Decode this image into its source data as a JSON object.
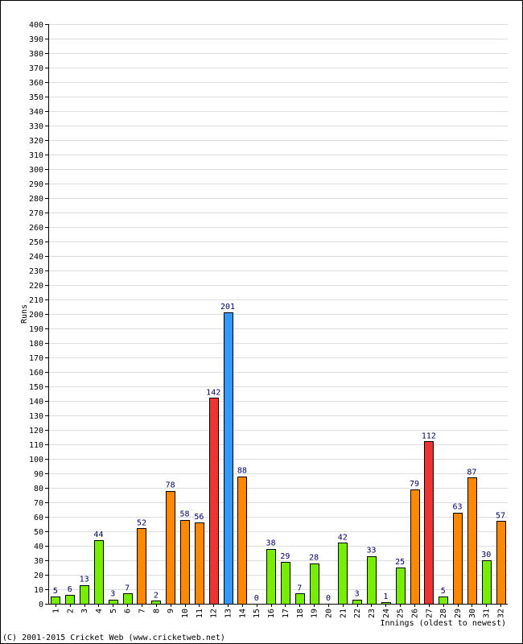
{
  "chart_data": {
    "type": "bar",
    "title": "",
    "xlabel": "Innings (oldest to newest)",
    "ylabel": "Runs",
    "ylim": [
      0,
      400
    ],
    "ytick_step": 10,
    "grid": true,
    "categories": [
      "1",
      "2",
      "3",
      "4",
      "5",
      "6",
      "7",
      "8",
      "9",
      "10",
      "11",
      "12",
      "13",
      "14",
      "15",
      "16",
      "17",
      "18",
      "19",
      "20",
      "21",
      "22",
      "23",
      "24",
      "25",
      "26",
      "27",
      "28",
      "29",
      "30",
      "31",
      "32"
    ],
    "values": [
      5,
      6,
      13,
      44,
      3,
      7,
      52,
      2,
      78,
      58,
      56,
      142,
      201,
      88,
      0,
      38,
      29,
      7,
      28,
      0,
      42,
      3,
      33,
      1,
      25,
      79,
      112,
      5,
      63,
      87,
      30,
      57
    ],
    "value_labels": [
      "5",
      "6",
      "13",
      "44",
      "3",
      "7",
      "52",
      "2",
      "78",
      "58",
      "56",
      "142",
      "201",
      "88",
      "0",
      "38",
      "29",
      "7",
      "28",
      "0",
      "42",
      "3",
      "33",
      "1",
      "25",
      "79",
      "112",
      "5",
      "63",
      "87",
      "30",
      "57"
    ],
    "bar_colors": [
      "#77ee00",
      "#77ee00",
      "#77ee00",
      "#77ee00",
      "#77ee00",
      "#77ee00",
      "#ff8800",
      "#77ee00",
      "#ff8800",
      "#ff8800",
      "#ff8800",
      "#ee3333",
      "#3399ff",
      "#ff8800",
      "#77ee00",
      "#77ee00",
      "#77ee00",
      "#77ee00",
      "#77ee00",
      "#77ee00",
      "#77ee00",
      "#77ee00",
      "#77ee00",
      "#77ee00",
      "#77ee00",
      "#ff8800",
      "#ee3333",
      "#77ee00",
      "#ff8800",
      "#ff8800",
      "#77ee00",
      "#ff8800"
    ],
    "label_color": "#000066",
    "grid_color": "#dddddd"
  },
  "footer": {
    "copyright": "(C) 2001-2015 Cricket Web (www.cricketweb.net)"
  }
}
